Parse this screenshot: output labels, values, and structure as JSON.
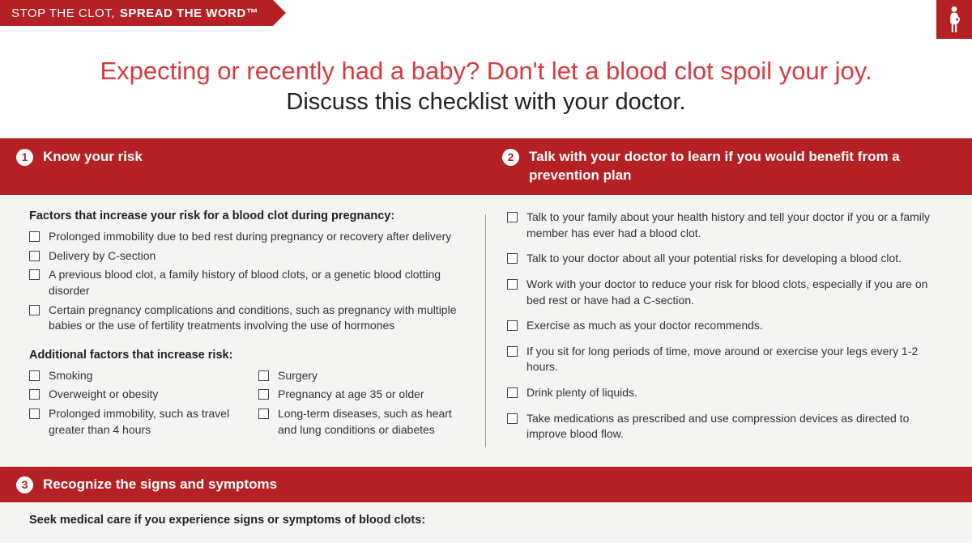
{
  "banner": {
    "line1": "STOP THE CLOT,",
    "line2": "SPREAD THE WORD™"
  },
  "headline": {
    "red": "Expecting or recently had a baby? Don't let a blood clot spoil your joy.",
    "black": "Discuss this checklist with your doctor."
  },
  "sections": {
    "s1": {
      "num": "1",
      "title": "Know your risk"
    },
    "s2": {
      "num": "2",
      "title": "Talk with your doctor to learn if you would benefit from a prevention plan"
    },
    "s3": {
      "num": "3",
      "title": "Recognize the signs and symptoms"
    }
  },
  "left": {
    "sub1": "Factors that increase your risk for a blood clot during pregnancy:",
    "list1": [
      "Prolonged immobility due to bed rest during pregnancy or recovery after delivery",
      "Delivery by C-section",
      "A previous blood clot, a family history of blood clots, or a genetic blood clotting disorder",
      "Certain pregnancy complications and conditions, such as pregnancy with multiple babies or the use of fertility treatments involving the use of hormones"
    ],
    "sub2": "Additional factors that increase risk:",
    "list2a": [
      "Smoking",
      "Overweight or obesity",
      "Prolonged immobility, such as travel greater than 4 hours"
    ],
    "list2b": [
      "Surgery",
      "Pregnancy at age 35 or older",
      "Long-term diseases, such as heart and lung conditions or diabetes"
    ]
  },
  "right": {
    "list": [
      "Talk to your family about your health history and tell your doctor if you or a family member has ever had a blood clot.",
      "Talk to your doctor about all your potential risks for developing a blood clot.",
      "Work with your doctor to reduce your risk for blood clots, especially if you are on bed rest or have had a C-section.",
      "Exercise as much as your doctor recommends.",
      "If you sit for long periods of time, move around or exercise your legs every 1-2 hours.",
      "Drink plenty of liquids.",
      "Take medications as prescribed and use compression devices as directed to improve blood flow."
    ]
  },
  "bottom": {
    "sub": "Seek medical care if you experience signs or symptoms of blood clots:"
  },
  "colors": {
    "brand_red": "#b52025",
    "headline_red": "#d73a3f",
    "bg_grey": "#f4f4f3",
    "text": "#333333"
  }
}
